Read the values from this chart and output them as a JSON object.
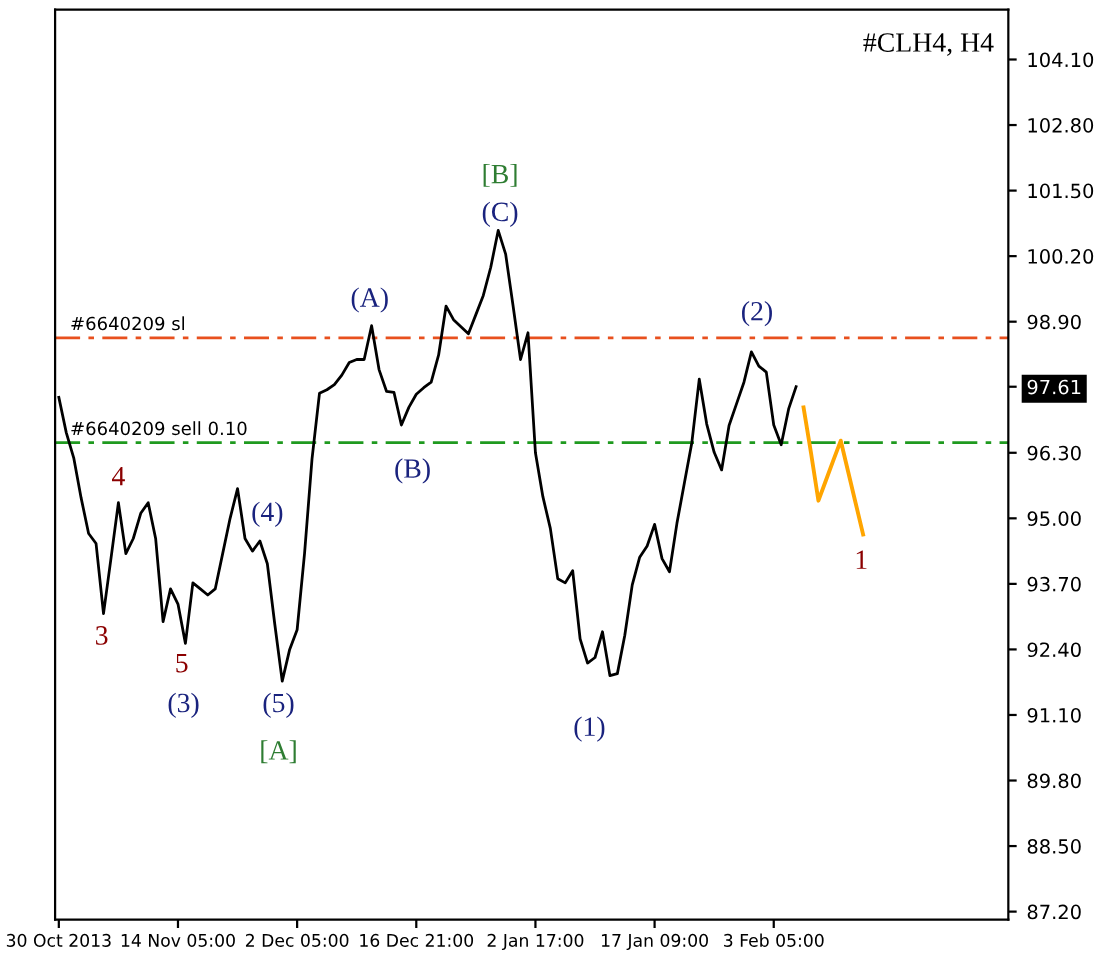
{
  "chart_data": {
    "type": "line",
    "title": "#CLH4, H4",
    "categories": [
      "30 Oct 2013",
      null,
      null,
      null,
      null,
      null,
      null,
      null,
      null,
      null,
      null,
      null,
      null,
      null,
      null,
      null,
      "14 Nov 05:00",
      null,
      null,
      null,
      null,
      null,
      null,
      null,
      null,
      null,
      null,
      null,
      null,
      null,
      null,
      null,
      "2 Dec 05:00",
      null,
      null,
      null,
      null,
      null,
      null,
      null,
      null,
      null,
      null,
      null,
      null,
      null,
      null,
      null,
      "16 Dec 21:00",
      null,
      null,
      null,
      null,
      null,
      null,
      null,
      null,
      null,
      null,
      null,
      null,
      null,
      null,
      null,
      "2 Jan 17:00",
      null,
      null,
      null,
      null,
      null,
      null,
      null,
      null,
      null,
      null,
      null,
      null,
      null,
      null,
      null,
      "17 Jan 09:00",
      null,
      null,
      null,
      null,
      null,
      null,
      null,
      null,
      null,
      null,
      null,
      null,
      null,
      null,
      null,
      "3 Feb 05:00",
      null,
      null,
      null,
      null,
      null,
      null,
      null,
      null,
      null,
      null,
      null,
      null,
      null,
      null,
      null,
      null,
      null,
      null,
      null,
      null,
      null,
      null,
      null,
      null,
      null,
      null,
      null,
      null,
      null,
      null,
      null
    ],
    "ylim": [
      87.04,
      105.09
    ],
    "yticks": [
      {
        "value": 87.2,
        "label": "87.20"
      },
      {
        "value": 88.5,
        "label": "88.50"
      },
      {
        "value": 89.8,
        "label": "89.80"
      },
      {
        "value": 91.1,
        "label": "91.10"
      },
      {
        "value": 92.4,
        "label": "92.40"
      },
      {
        "value": 93.7,
        "label": "93.70"
      },
      {
        "value": 95.0,
        "label": "95.00"
      },
      {
        "value": 96.3,
        "label": "96.30"
      },
      {
        "value": 97.61,
        "label": "97.61"
      },
      {
        "value": 98.9,
        "label": "98.90"
      },
      {
        "value": 100.2,
        "label": "100.20"
      },
      {
        "value": 101.5,
        "label": "101.50"
      },
      {
        "value": 102.8,
        "label": "102.80"
      },
      {
        "value": 104.1,
        "label": "104.10"
      }
    ],
    "grid": false,
    "legend": false,
    "marker": "none",
    "line_style": "solid",
    "series": [
      {
        "color": "#000000",
        "values": [
          97.4,
          96.7,
          96.2,
          95.4,
          94.7,
          94.5,
          93.11,
          94.2,
          95.31,
          94.3,
          94.6,
          95.1,
          95.31,
          94.6,
          92.95,
          93.6,
          93.3,
          92.52,
          93.72,
          93.6,
          93.48,
          93.6,
          94.3,
          95.0,
          95.59,
          94.6,
          94.35,
          94.55,
          94.1,
          92.9,
          91.77,
          92.4,
          92.79,
          94.31,
          96.18,
          97.48,
          97.55,
          97.65,
          97.84,
          98.09,
          98.15,
          98.15,
          98.82,
          97.95,
          97.52,
          97.5,
          96.85,
          97.2,
          97.46,
          97.59,
          97.7,
          98.24,
          99.21,
          98.94,
          98.8,
          98.66,
          99.04,
          99.42,
          99.98,
          100.71,
          100.24,
          99.21,
          98.15,
          98.68,
          96.3,
          95.43,
          94.8,
          93.8,
          93.72,
          93.96,
          92.61,
          92.13,
          92.24,
          92.75,
          91.88,
          91.92,
          92.68,
          93.68,
          94.23,
          94.45,
          94.88,
          94.2,
          93.94,
          94.9,
          95.7,
          96.5,
          97.76,
          96.87,
          96.31,
          95.96,
          96.84,
          97.27,
          97.7,
          98.3,
          98.02,
          97.9,
          96.85,
          96.46,
          97.17,
          97.61,
          null,
          null,
          null,
          null,
          null,
          null,
          null,
          null,
          null,
          null,
          null,
          null,
          null,
          null,
          null,
          null,
          null,
          null,
          null,
          null,
          null,
          null,
          null,
          null,
          null,
          null,
          null,
          null
        ]
      },
      {
        "color": "#ffa500",
        "values": [
          null,
          null,
          null,
          null,
          null,
          null,
          null,
          null,
          null,
          null,
          null,
          null,
          null,
          null,
          null,
          null,
          null,
          null,
          null,
          null,
          null,
          null,
          null,
          null,
          null,
          null,
          null,
          null,
          null,
          null,
          null,
          null,
          null,
          null,
          null,
          null,
          null,
          null,
          null,
          null,
          null,
          null,
          null,
          null,
          null,
          null,
          null,
          null,
          null,
          null,
          null,
          null,
          null,
          null,
          null,
          null,
          null,
          null,
          null,
          null,
          null,
          null,
          null,
          null,
          null,
          null,
          null,
          null,
          null,
          null,
          null,
          null,
          null,
          null,
          null,
          null,
          null,
          null,
          null,
          null,
          null,
          null,
          null,
          null,
          null,
          null,
          null,
          null,
          null,
          null,
          null,
          null,
          null,
          null,
          null,
          null,
          null,
          null,
          null,
          null,
          97.2,
          96.3,
          95.35,
          95.75,
          96.15,
          96.54,
          95.92,
          95.3,
          94.68,
          null,
          null,
          null,
          null,
          null,
          null,
          null,
          null,
          null,
          null,
          null,
          null,
          null,
          null,
          null,
          null,
          null,
          null,
          null
        ]
      }
    ],
    "ref_lines": [
      {
        "axis": "y",
        "value": 98.58,
        "label": "#6640209 sl",
        "color": "#e8501e",
        "line_style": "dashed"
      },
      {
        "axis": "y",
        "value": 96.5,
        "label": "#6640209 sell 0.10",
        "color": "#1f9a1f",
        "line_style": "dashed"
      }
    ],
    "annotations": [
      "3",
      "4",
      "5",
      "(3)",
      "(4)",
      "(5)",
      "[A]",
      "(A)",
      "(B)",
      "[B]",
      "(C)",
      "(1)",
      "(2)",
      "1"
    ]
  }
}
